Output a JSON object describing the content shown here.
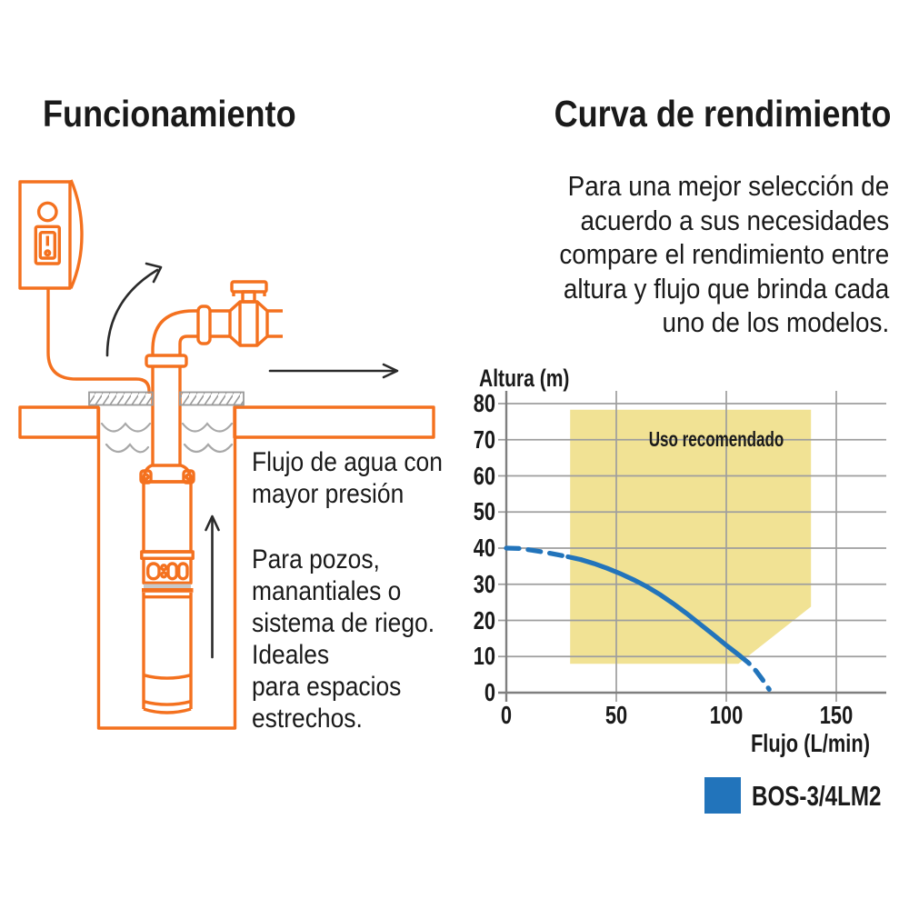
{
  "colors": {
    "accent_orange": "#F4711F",
    "curve_blue": "#2274BB",
    "region_yellow": "#F1E294",
    "grid_gray": "#9E9E9E",
    "axis_gray": "#7F7F7F",
    "hatch_gray": "#9A9A9A",
    "waves_gray": "#A8A8A8",
    "pump_band_gray": "#C8C8C8",
    "arrow_black": "#2A2A2A",
    "text_black": "#1A1A1A"
  },
  "left_section": {
    "title": "Funcionamiento",
    "captions": {
      "pressure": {
        "lines": [
          "Flujo de agua con",
          "mayor presión"
        ]
      },
      "use_cases": {
        "lines": [
          "Para pozos,",
          "manantiales o",
          "sistema de riego.",
          "Ideales",
          "para espacios",
          "estrechos."
        ]
      }
    },
    "diagram_icons": [
      "power-switch-box-icon",
      "indicator-light-icon",
      "rocker-switch-icon",
      "power-cable-icon",
      "curved-flow-arrow-icon",
      "riser-pipe-icon",
      "pipe-elbow-icon",
      "pipe-flange-icon",
      "pipe-coupling-icon",
      "shutoff-valve-icon",
      "valve-handle-icon",
      "outflow-pipe-icon",
      "outflow-arrow-icon",
      "ground-surface-icon",
      "well-cover-icon",
      "well-shaft-icon",
      "water-waves-icon",
      "submersible-pump-icon",
      "pump-intake-slots-icon",
      "upward-flow-arrow-icon"
    ]
  },
  "right_section": {
    "title": "Curva de rendimiento",
    "intro_lines": [
      "Para una mejor selección de",
      "acuerdo a sus necesidades",
      "compare el rendimiento entre",
      "altura y flujo que brinda cada",
      "uno de los modelos."
    ]
  },
  "chart_data": {
    "type": "line",
    "title": "",
    "xlabel": "Flujo (L/min)",
    "ylabel": "Altura (m)",
    "xlim": [
      0,
      173
    ],
    "ylim": [
      0,
      83.5
    ],
    "xticks": [
      0,
      50,
      100,
      150
    ],
    "yticks": [
      0,
      10,
      20,
      30,
      40,
      50,
      60,
      70,
      80
    ],
    "grid": true,
    "recommended_region": {
      "label": "Uso recomendado",
      "color": "#F1E294",
      "polygon": [
        [
          29,
          8
        ],
        [
          29,
          78.3
        ],
        [
          138.5,
          78.3
        ],
        [
          138.5,
          23.8
        ],
        [
          105.5,
          8
        ]
      ]
    },
    "series": [
      {
        "name": "BOS-3/4LM2",
        "color": "#2274BB",
        "segments": [
          {
            "style": "dashed",
            "points": [
              [
                0,
                40
              ],
              [
                6,
                39.9
              ],
              [
                12,
                39.4
              ],
              [
                18,
                38.8
              ],
              [
                24,
                38.1
              ],
              [
                28,
                37.6
              ]
            ]
          },
          {
            "style": "solid",
            "points": [
              [
                28,
                37.6
              ],
              [
                34,
                36.8
              ],
              [
                40,
                35.7
              ],
              [
                46,
                34.4
              ],
              [
                52,
                32.9
              ],
              [
                58,
                31.2
              ],
              [
                64,
                29.3
              ],
              [
                70,
                27.1
              ],
              [
                76,
                24.6
              ],
              [
                82,
                21.9
              ],
              [
                88,
                19.0
              ],
              [
                94,
                16.1
              ],
              [
                100,
                13.1
              ],
              [
                103,
                11.7
              ],
              [
                106,
                10.3
              ]
            ]
          },
          {
            "style": "dashed",
            "points": [
              [
                106,
                10.3
              ],
              [
                110,
                8.3
              ],
              [
                113.5,
                6.0
              ],
              [
                116.5,
                3.6
              ],
              [
                119.5,
                0.9
              ]
            ]
          }
        ]
      }
    ],
    "legend": {
      "position": "bottom-right",
      "entries": [
        {
          "label": "BOS-3/4LM2",
          "color": "#2274BB"
        }
      ]
    }
  }
}
